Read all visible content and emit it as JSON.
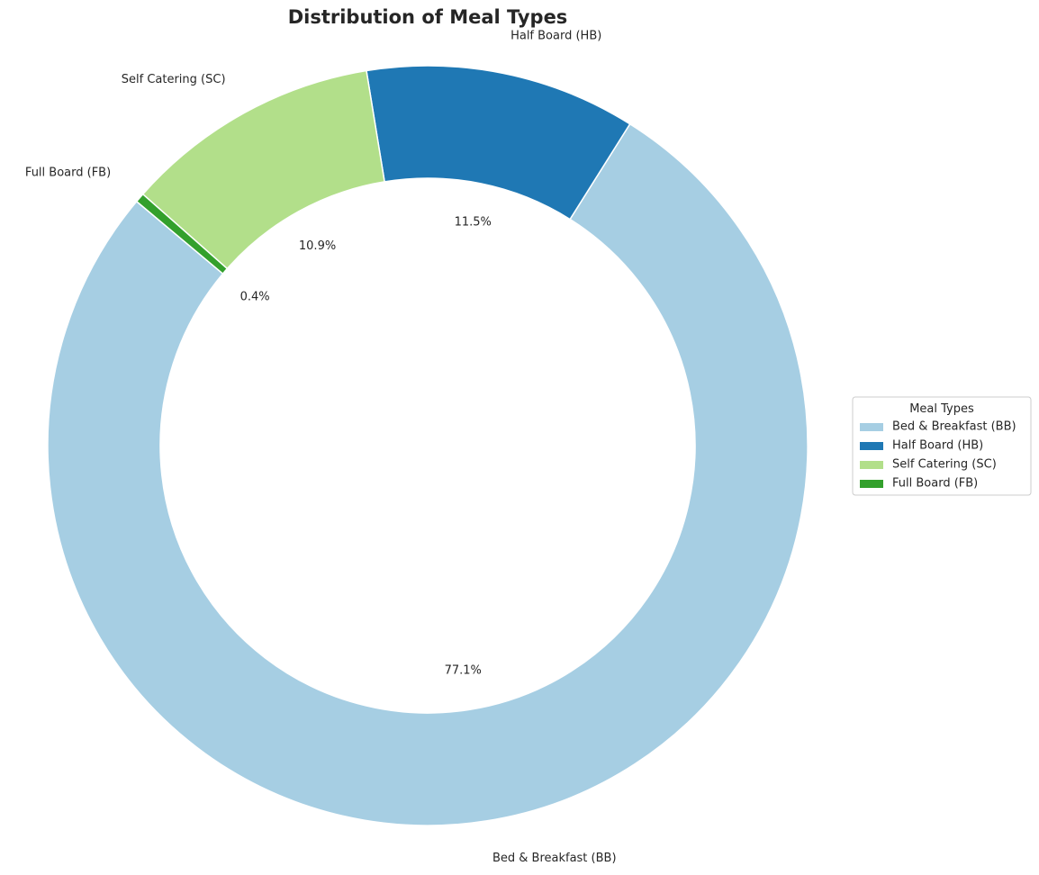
{
  "chart_data": {
    "type": "pie",
    "variant": "donut",
    "title": "Distribution of Meal Types",
    "start_angle_deg": 140,
    "direction": "counterclockwise",
    "slices": [
      {
        "label": "Bed & Breakfast (BB)",
        "value": 77.1,
        "pct_label": "77.1%",
        "color": "#a6cee3"
      },
      {
        "label": "Half Board (HB)",
        "value": 11.5,
        "pct_label": "11.5%",
        "color": "#1f78b4"
      },
      {
        "label": "Self Catering (SC)",
        "value": 10.9,
        "pct_label": "10.9%",
        "color": "#b2df8a"
      },
      {
        "label": "Full Board (FB)",
        "value": 0.4,
        "pct_label": "0.4%",
        "color": "#33a02c"
      }
    ],
    "legend": {
      "title": "Meal Types",
      "placement": "center-right",
      "entries": [
        "Bed & Breakfast (BB)",
        "Half Board (HB)",
        "Self Catering (SC)",
        "Full Board (FB)"
      ]
    }
  }
}
